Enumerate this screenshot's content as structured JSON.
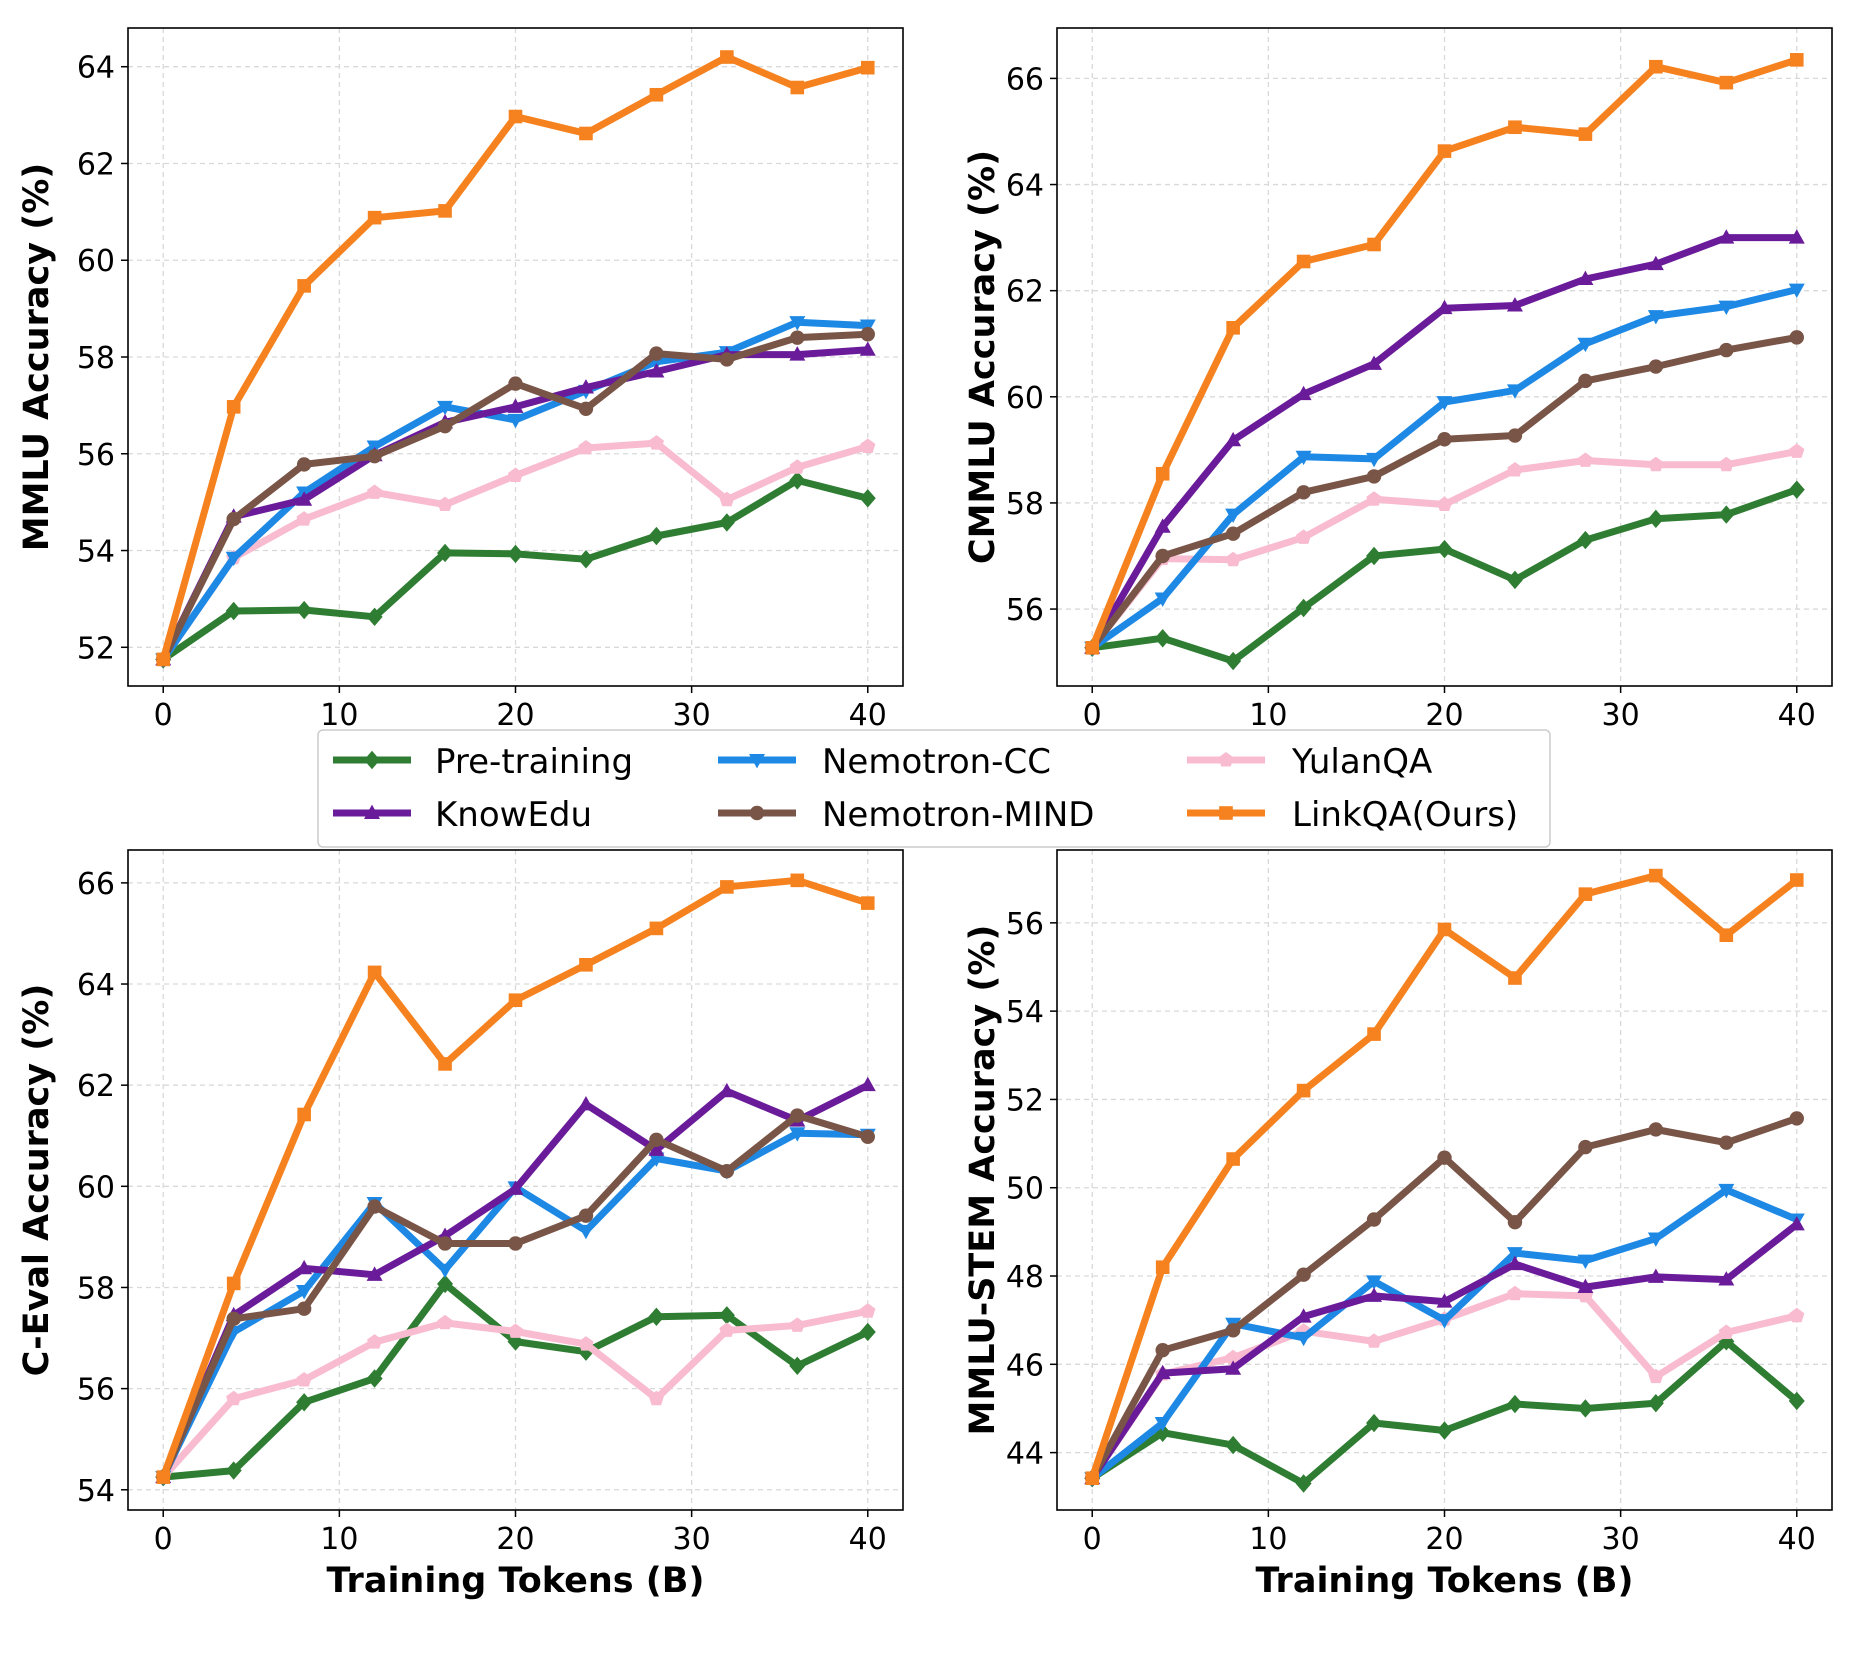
{
  "legend": {
    "placement": "top-center between rows",
    "entries": [
      {
        "name": "Pre-training",
        "color": "#2e7d32",
        "marker": "diamond"
      },
      {
        "name": "Nemotron-CC",
        "color": "#1e88e5",
        "marker": "triangle-down"
      },
      {
        "name": "YulanQA",
        "color": "#f8bbd0",
        "marker": "pentagon"
      },
      {
        "name": "KnowEdu",
        "color": "#6a1b9a",
        "marker": "triangle-up"
      },
      {
        "name": "Nemotron-MIND",
        "color": "#795548",
        "marker": "circle"
      },
      {
        "name": "LinkQA(Ours)",
        "color": "#f5821f",
        "marker": "square"
      }
    ]
  },
  "chart_data": [
    {
      "type": "line",
      "title": "",
      "xlabel": "",
      "ylabel": "MMLU Accuracy (%)",
      "x": [
        0,
        4,
        8,
        12,
        16,
        20,
        24,
        28,
        32,
        36,
        40
      ],
      "xlim": [
        -2,
        42
      ],
      "ylim": [
        51.2,
        64.8
      ],
      "xticks": [
        0,
        10,
        20,
        30,
        40
      ],
      "yticks": [
        52,
        54,
        56,
        58,
        60,
        62,
        64
      ],
      "grid": true,
      "series": [
        {
          "name": "Pre-training",
          "values": [
            51.75,
            52.75,
            52.77,
            52.63,
            53.95,
            53.93,
            53.82,
            54.3,
            54.58,
            55.45,
            55.08
          ]
        },
        {
          "name": "Nemotron-CC",
          "values": [
            51.75,
            53.85,
            55.2,
            56.15,
            56.97,
            56.7,
            57.3,
            57.9,
            58.1,
            58.72,
            58.65
          ]
        },
        {
          "name": "YulanQA",
          "values": [
            51.75,
            53.85,
            54.65,
            55.2,
            54.95,
            55.55,
            56.12,
            56.22,
            55.05,
            55.72,
            56.15
          ]
        },
        {
          "name": "KnowEdu",
          "values": [
            51.75,
            54.7,
            55.05,
            55.97,
            56.65,
            56.97,
            57.37,
            57.7,
            58.05,
            58.05,
            58.15
          ]
        },
        {
          "name": "Nemotron-MIND",
          "values": [
            51.75,
            54.65,
            55.78,
            55.95,
            56.57,
            57.45,
            56.93,
            58.07,
            57.95,
            58.4,
            58.47
          ]
        },
        {
          "name": "LinkQA(Ours)",
          "values": [
            51.75,
            56.97,
            59.47,
            60.88,
            61.02,
            62.97,
            62.62,
            63.42,
            64.2,
            63.57,
            63.98
          ]
        }
      ]
    },
    {
      "type": "line",
      "title": "",
      "xlabel": "",
      "ylabel": "CMMLU Accuracy (%)",
      "x": [
        0,
        4,
        8,
        12,
        16,
        20,
        24,
        28,
        32,
        36,
        40
      ],
      "xlim": [
        -2,
        42
      ],
      "ylim": [
        54.55,
        66.95
      ],
      "xticks": [
        0,
        10,
        20,
        30,
        40
      ],
      "yticks": [
        56,
        58,
        60,
        62,
        64,
        66
      ],
      "grid": true,
      "series": [
        {
          "name": "Pre-training",
          "values": [
            55.27,
            55.45,
            55.02,
            56.02,
            57.0,
            57.13,
            56.55,
            57.3,
            57.7,
            57.78,
            58.25
          ]
        },
        {
          "name": "Nemotron-CC",
          "values": [
            55.27,
            56.2,
            57.78,
            58.87,
            58.83,
            59.9,
            60.12,
            61.0,
            61.52,
            61.7,
            62.02
          ]
        },
        {
          "name": "YulanQA",
          "values": [
            55.27,
            56.95,
            56.93,
            57.35,
            58.07,
            57.97,
            58.62,
            58.8,
            58.72,
            58.72,
            58.97
          ]
        },
        {
          "name": "KnowEdu",
          "values": [
            55.27,
            57.55,
            59.18,
            60.05,
            60.62,
            61.67,
            61.72,
            62.22,
            62.5,
            63.0,
            63.0
          ]
        },
        {
          "name": "Nemotron-MIND",
          "values": [
            55.27,
            57.0,
            57.42,
            58.2,
            58.5,
            59.2,
            59.27,
            60.3,
            60.57,
            60.88,
            61.12
          ]
        },
        {
          "name": "LinkQA(Ours)",
          "values": [
            55.27,
            58.55,
            61.3,
            62.55,
            62.87,
            64.63,
            65.08,
            64.95,
            66.22,
            65.92,
            66.35
          ]
        }
      ]
    },
    {
      "type": "line",
      "title": "",
      "xlabel": "Training Tokens (B)",
      "ylabel": "C-Eval Accuracy (%)",
      "x": [
        0,
        4,
        8,
        12,
        16,
        20,
        24,
        28,
        32,
        36,
        40
      ],
      "xlim": [
        -2,
        42
      ],
      "ylim": [
        53.6,
        66.65
      ],
      "xticks": [
        0,
        10,
        20,
        30,
        40
      ],
      "yticks": [
        54,
        56,
        58,
        60,
        62,
        64,
        66
      ],
      "grid": true,
      "series": [
        {
          "name": "Pre-training",
          "values": [
            54.25,
            54.38,
            55.73,
            56.2,
            58.07,
            56.93,
            56.73,
            57.42,
            57.45,
            56.45,
            57.12
          ]
        },
        {
          "name": "Nemotron-CC",
          "values": [
            54.25,
            57.12,
            57.93,
            59.67,
            58.35,
            59.98,
            59.12,
            60.55,
            60.3,
            61.05,
            61.02
          ]
        },
        {
          "name": "YulanQA",
          "values": [
            54.25,
            55.8,
            56.17,
            56.92,
            57.3,
            57.13,
            56.88,
            55.8,
            57.15,
            57.25,
            57.53
          ]
        },
        {
          "name": "KnowEdu",
          "values": [
            54.25,
            57.45,
            58.38,
            58.25,
            59.02,
            59.95,
            61.62,
            60.72,
            61.88,
            61.3,
            62.0
          ]
        },
        {
          "name": "Nemotron-MIND",
          "values": [
            54.25,
            57.38,
            57.58,
            59.6,
            58.87,
            58.87,
            59.42,
            60.92,
            60.3,
            61.4,
            60.98
          ]
        },
        {
          "name": "LinkQA(Ours)",
          "values": [
            54.25,
            58.08,
            61.42,
            64.23,
            62.42,
            63.68,
            64.38,
            65.1,
            65.92,
            66.05,
            65.6
          ]
        }
      ]
    },
    {
      "type": "line",
      "title": "",
      "xlabel": "Training Tokens (B)",
      "ylabel": "MMLU-STEM Accuracy (%)",
      "x": [
        0,
        4,
        8,
        12,
        16,
        20,
        24,
        28,
        32,
        36,
        40
      ],
      "xlim": [
        -2,
        42
      ],
      "ylim": [
        42.7,
        57.65
      ],
      "xticks": [
        0,
        10,
        20,
        30,
        40
      ],
      "yticks": [
        44,
        46,
        48,
        50,
        52,
        54,
        56
      ],
      "grid": true,
      "series": [
        {
          "name": "Pre-training",
          "values": [
            43.42,
            44.45,
            44.17,
            43.3,
            44.67,
            44.5,
            45.1,
            45.0,
            45.12,
            46.52,
            45.17
          ]
        },
        {
          "name": "Nemotron-CC",
          "values": [
            43.42,
            44.67,
            46.92,
            46.6,
            47.88,
            47.0,
            48.52,
            48.35,
            48.85,
            49.95,
            49.28
          ]
        },
        {
          "name": "YulanQA",
          "values": [
            43.42,
            45.78,
            46.15,
            46.75,
            46.52,
            47.02,
            47.6,
            47.55,
            45.72,
            46.72,
            47.1
          ]
        },
        {
          "name": "KnowEdu",
          "values": [
            43.42,
            45.8,
            45.9,
            47.08,
            47.55,
            47.42,
            48.27,
            47.75,
            47.98,
            47.92,
            49.17
          ]
        },
        {
          "name": "Nemotron-MIND",
          "values": [
            43.42,
            46.32,
            46.77,
            48.03,
            49.28,
            50.68,
            49.22,
            50.92,
            51.32,
            51.02,
            51.57
          ]
        },
        {
          "name": "LinkQA(Ours)",
          "values": [
            43.42,
            48.2,
            50.65,
            52.2,
            53.48,
            55.85,
            54.75,
            56.65,
            57.07,
            55.72,
            56.97
          ]
        }
      ]
    }
  ]
}
